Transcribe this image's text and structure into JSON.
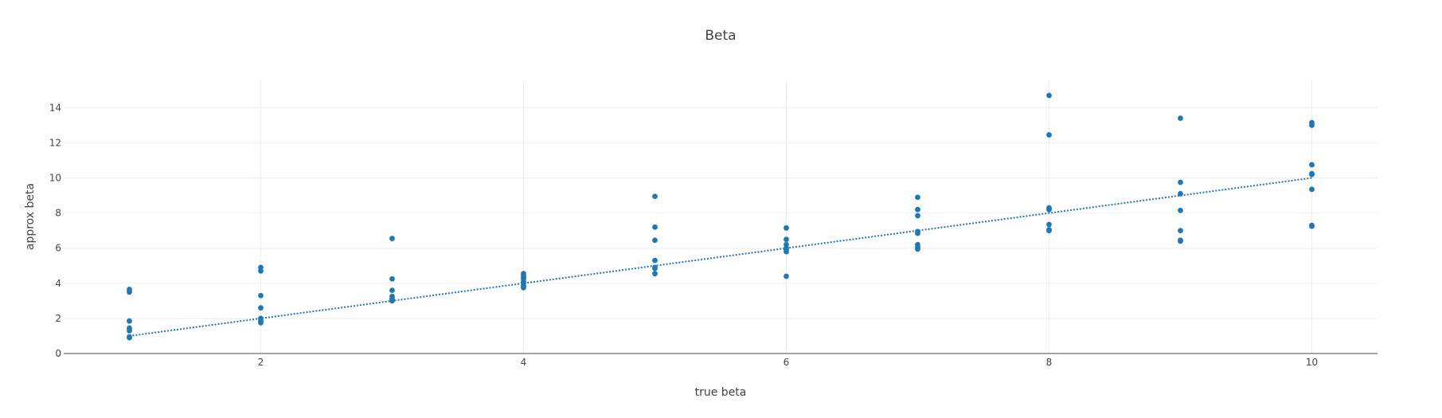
{
  "chart_data": {
    "type": "scatter",
    "title": "Beta",
    "xlabel": "true beta",
    "ylabel": "approx beta",
    "xlim": [
      0.5,
      10.5
    ],
    "ylim": [
      0,
      15.6
    ],
    "x_ticks": [
      2,
      4,
      6,
      8,
      10
    ],
    "y_ticks": [
      0,
      2,
      4,
      6,
      8,
      10,
      12,
      14
    ],
    "grid": true,
    "legend": "none",
    "colors": {
      "points": "#1f77b4",
      "line": "#1f77b4"
    },
    "series": [
      {
        "type": "scatter",
        "x": [
          1,
          1,
          1,
          1,
          1,
          1,
          1,
          2,
          2,
          2,
          2,
          2,
          2,
          2,
          3,
          3,
          3,
          3,
          3,
          3,
          4,
          4,
          4,
          4,
          4,
          4,
          4,
          4,
          5,
          5,
          5,
          5,
          5,
          5,
          5,
          6,
          6,
          6,
          6,
          6,
          6,
          6,
          7,
          7,
          7,
          7,
          7,
          7,
          7,
          7,
          8,
          8,
          8,
          8,
          8,
          8,
          8,
          9,
          9,
          9,
          9,
          9,
          9,
          9,
          10,
          10,
          10,
          10,
          10,
          10,
          10,
          10
        ],
        "y": [
          3.65,
          3.5,
          1.85,
          1.45,
          1.3,
          0.95,
          0.9,
          4.9,
          4.7,
          3.3,
          2.6,
          2.0,
          1.85,
          1.75,
          6.55,
          4.25,
          3.6,
          3.25,
          3.1,
          3.0,
          4.55,
          4.45,
          4.35,
          4.25,
          4.1,
          4.0,
          3.85,
          3.75,
          8.95,
          7.2,
          6.45,
          5.3,
          4.9,
          4.85,
          4.55,
          7.15,
          6.5,
          6.2,
          6.0,
          5.9,
          5.8,
          4.4,
          8.9,
          8.2,
          7.85,
          6.95,
          6.85,
          6.2,
          6.05,
          5.95,
          14.7,
          12.45,
          8.3,
          8.2,
          7.35,
          7.05,
          7.0,
          13.4,
          9.75,
          9.1,
          8.15,
          7.0,
          6.45,
          6.4,
          13.15,
          13.0,
          10.75,
          10.25,
          10.2,
          9.35,
          7.3,
          7.25
        ]
      },
      {
        "type": "line",
        "dash": "dot",
        "x": [
          1,
          10
        ],
        "y": [
          1,
          10
        ]
      }
    ]
  }
}
